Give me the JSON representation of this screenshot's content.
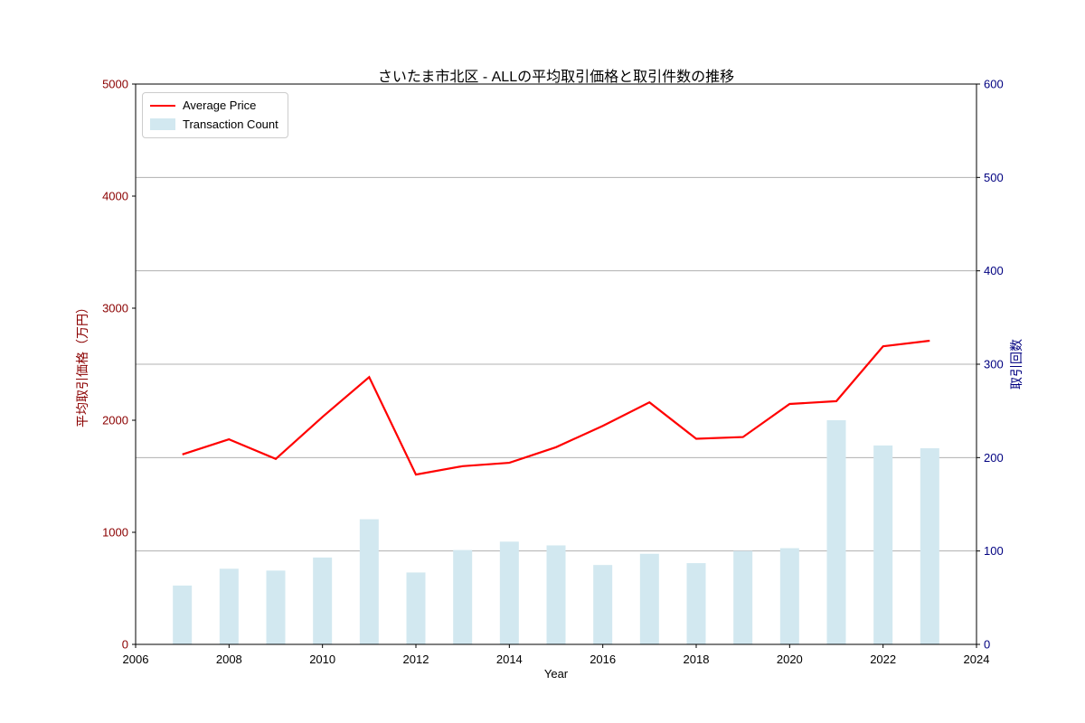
{
  "figure": {
    "background": "#ffffff"
  },
  "chart_data": {
    "type": "combo",
    "title": "さいたま市北区 - ALLの平均取引価格と取引件数の推移",
    "xlabel": "Year",
    "ylabel_left": "平均取引価格（万円）",
    "ylabel_right": "取引回数",
    "xlim": [
      2006,
      2024
    ],
    "ylim_left": [
      0,
      5000
    ],
    "ylim_right": [
      0,
      600
    ],
    "x_ticks": [
      2006,
      2008,
      2010,
      2012,
      2014,
      2016,
      2018,
      2020,
      2022,
      2024
    ],
    "y_ticks_left": [
      0,
      1000,
      2000,
      3000,
      4000,
      5000
    ],
    "y_ticks_right": [
      0,
      100,
      200,
      300,
      400,
      500,
      600
    ],
    "grid": {
      "visible": true,
      "axis": "right-y",
      "values": [
        100,
        200,
        300,
        400,
        500
      ],
      "color": "#b0b0b0"
    },
    "categories": [
      2007,
      2008,
      2009,
      2010,
      2011,
      2012,
      2013,
      2014,
      2015,
      2016,
      2017,
      2018,
      2019,
      2020,
      2021,
      2022,
      2023
    ],
    "series": [
      {
        "name": "Average Price",
        "type": "line",
        "axis": "left",
        "color": "#ff0000",
        "values": [
          1695,
          1830,
          1655,
          2030,
          2385,
          1515,
          1590,
          1620,
          1760,
          1950,
          2160,
          1835,
          1850,
          2145,
          2170,
          2660,
          2710
        ]
      },
      {
        "name": "Transaction Count",
        "type": "bar",
        "axis": "right",
        "color": "#d2e8f0",
        "values": [
          63,
          81,
          79,
          93,
          134,
          77,
          101,
          110,
          106,
          85,
          97,
          87,
          100,
          103,
          240,
          213,
          210
        ]
      }
    ],
    "legend": {
      "position": "upper-left",
      "entries": [
        "Average Price",
        "Transaction Count"
      ]
    }
  },
  "colors": {
    "left_axis_text": "#8b0000",
    "right_axis_text": "#000080",
    "tick_text": "#000000",
    "grid": "#b0b0b0",
    "spine": "#000000",
    "line": "#ff0000",
    "bar": "#d2e8f0"
  }
}
